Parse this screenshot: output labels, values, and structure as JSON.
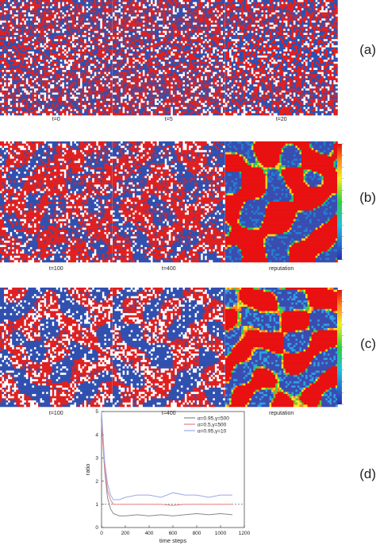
{
  "figure": {
    "rows": [
      {
        "label": "(a)",
        "captions": [
          "t=0",
          "t=5",
          "t=20"
        ]
      },
      {
        "label": "(b)",
        "captions": [
          "t=100",
          "t=400",
          "reputation"
        ]
      },
      {
        "label": "(c)",
        "captions": [
          "t=100",
          "t=400",
          "reputation"
        ]
      }
    ]
  },
  "chart_data": {
    "type": "line",
    "label": "(d)",
    "x_label": "time steps",
    "y_label": "ratio",
    "x": [
      0,
      25,
      50,
      75,
      100,
      150,
      200,
      300,
      400,
      500,
      600,
      700,
      800,
      900,
      1000,
      1100
    ],
    "series": [
      {
        "name": "α=0.95,γ=500",
        "color": "#888888",
        "values": [
          4.8,
          2.5,
          1.3,
          0.8,
          0.6,
          0.5,
          0.5,
          0.55,
          0.5,
          0.55,
          0.5,
          0.55,
          0.6,
          0.55,
          0.6,
          0.55
        ]
      },
      {
        "name": "α=0.5,γ=500",
        "color": "#e88080",
        "values": [
          4.5,
          2.6,
          1.6,
          1.2,
          1.0,
          1.0,
          1.0,
          1.0,
          1.0,
          1.0,
          0.95,
          1.0,
          1.0,
          1.0,
          1.0,
          1.0
        ]
      },
      {
        "name": "α=0.95,γ=10",
        "color": "#9aa8e8",
        "values": [
          5.0,
          2.9,
          1.9,
          1.4,
          1.2,
          1.2,
          1.3,
          1.4,
          1.4,
          1.3,
          1.5,
          1.4,
          1.4,
          1.3,
          1.4,
          1.4
        ]
      }
    ],
    "xlim": [
      0,
      1200
    ],
    "xticks": [
      0,
      200,
      400,
      600,
      800,
      1000,
      1200
    ],
    "ylim": [
      0,
      5
    ],
    "yticks": [
      0,
      1,
      2,
      3,
      4,
      5
    ],
    "reference_line": 1
  }
}
